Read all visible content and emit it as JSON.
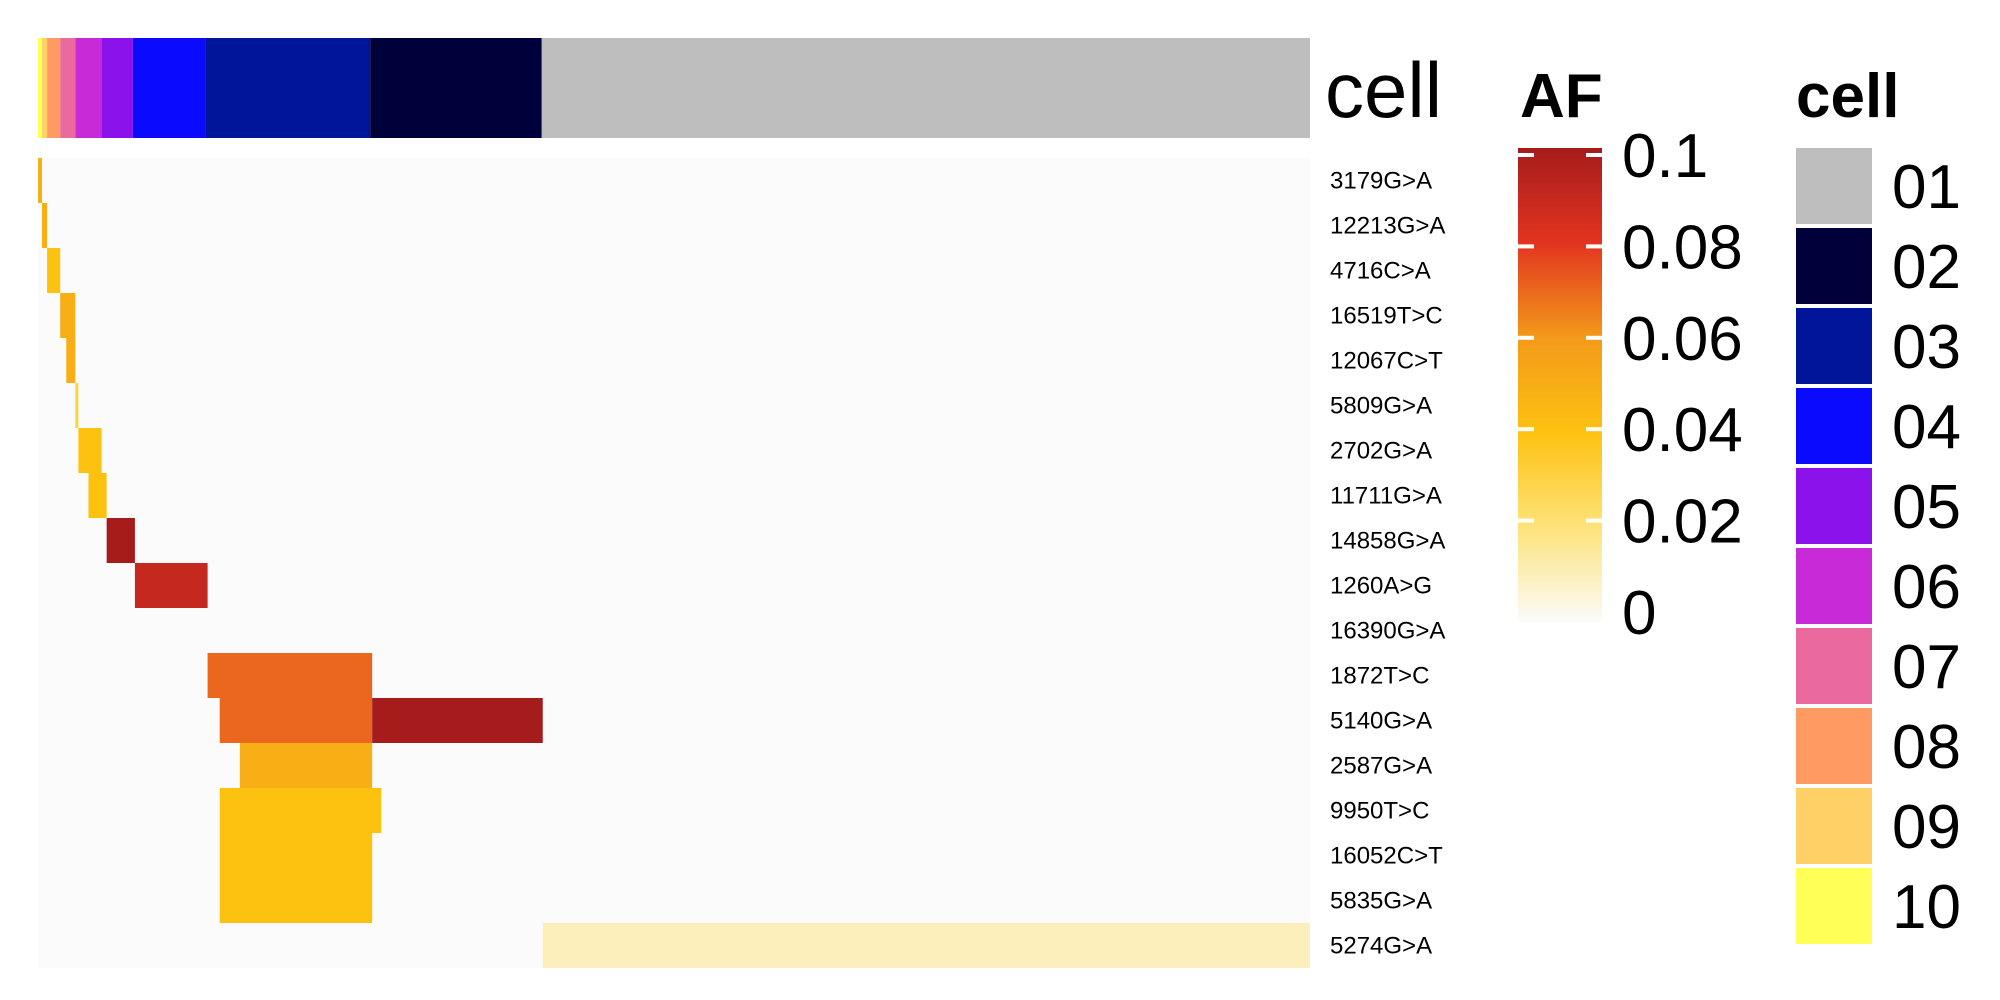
{
  "chart_data": {
    "type": "heatmap",
    "annotation_bar": {
      "label": "cell",
      "segments": [
        {
          "cell": "10",
          "count": 4
        },
        {
          "cell": "09",
          "count": 5
        },
        {
          "cell": "08",
          "count": 13
        },
        {
          "cell": "07",
          "count": 15
        },
        {
          "cell": "06",
          "count": 26
        },
        {
          "cell": "05",
          "count": 31
        },
        {
          "cell": "04",
          "count": 72
        },
        {
          "cell": "03",
          "count": 163
        },
        {
          "cell": "02",
          "count": 170
        },
        {
          "cell": "01",
          "count": 761
        }
      ]
    },
    "rows": [
      "3179G>A",
      "12213G>A",
      "4716C>A",
      "16519T>C",
      "12067C>T",
      "5809G>A",
      "2702G>A",
      "11711G>A",
      "14858G>A",
      "1260A>G",
      "16390G>A",
      "1872T>C",
      "5140G>A",
      "2587G>A",
      "9950T>C",
      "16052C>T",
      "5835G>A",
      "5274G>A"
    ],
    "af_scale": {
      "title": "AF",
      "ticks": [
        "0.1",
        "0.08",
        "0.06",
        "0.04",
        "0.02",
        "0"
      ],
      "range": [
        0,
        0.1
      ],
      "stops": [
        "#fbfbfb",
        "#fde37a",
        "#fdc110",
        "#f39a1a",
        "#e2341f",
        "#a61c1c"
      ]
    },
    "cell_legend": {
      "title": "cell",
      "items": [
        {
          "label": "01",
          "color": "#bebebe"
        },
        {
          "label": "02",
          "color": "#00003a"
        },
        {
          "label": "03",
          "color": "#001599"
        },
        {
          "label": "04",
          "color": "#0a0aff"
        },
        {
          "label": "05",
          "color": "#8c12ec"
        },
        {
          "label": "06",
          "color": "#c92ad8"
        },
        {
          "label": "07",
          "color": "#ea6a9d"
        },
        {
          "label": "08",
          "color": "#ff9a62"
        },
        {
          "label": "09",
          "color": "#ffd066"
        },
        {
          "label": "10",
          "color": "#ffff57"
        }
      ]
    },
    "blocks": [
      {
        "row": "3179G>A",
        "from": 0,
        "to": 4,
        "af": 0.05
      },
      {
        "row": "12213G>A",
        "from": 4,
        "to": 9,
        "af": 0.05
      },
      {
        "row": "4716C>A",
        "from": 9,
        "to": 22,
        "af": 0.04
      },
      {
        "row": "16519T>C",
        "from": 22,
        "to": 37,
        "af": 0.05
      },
      {
        "row": "12067C>T",
        "from": 28,
        "to": 37,
        "af": 0.05
      },
      {
        "row": "5809G>A",
        "from": 37,
        "to": 40,
        "af": 0.03
      },
      {
        "row": "2702G>A",
        "from": 40,
        "to": 63,
        "af": 0.04
      },
      {
        "row": "11711G>A",
        "from": 50,
        "to": 68,
        "af": 0.04
      },
      {
        "row": "14858G>A",
        "from": 68,
        "to": 96,
        "af": 0.1
      },
      {
        "row": "1260A>G",
        "from": 96,
        "to": 168,
        "af": 0.09
      },
      {
        "row": "1872T>C",
        "from": 168,
        "to": 331,
        "af": 0.07
      },
      {
        "row": "5140G>A",
        "from": 180,
        "to": 331,
        "af": 0.07
      },
      {
        "row": "5140G>A",
        "from": 331,
        "to": 500,
        "af": 0.1
      },
      {
        "row": "2587G>A",
        "from": 200,
        "to": 331,
        "af": 0.05
      },
      {
        "row": "9950T>C",
        "from": 180,
        "to": 340,
        "af": 0.04
      },
      {
        "row": "16052C>T",
        "from": 180,
        "to": 331,
        "af": 0.04
      },
      {
        "row": "5835G>A",
        "from": 180,
        "to": 331,
        "af": 0.04
      },
      {
        "row": "5274G>A",
        "from": 500,
        "to": 1260,
        "af": 0.01
      }
    ]
  }
}
